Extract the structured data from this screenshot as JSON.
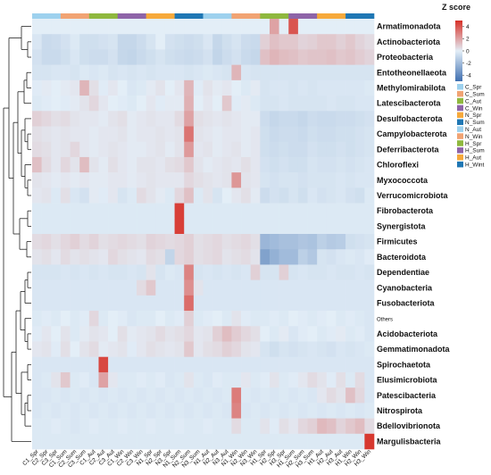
{
  "chart_data": {
    "type": "heatmap",
    "title": "",
    "legend_title": "Z score",
    "legend_ticks": [
      4,
      2,
      0,
      -2,
      -4
    ],
    "zlim": [
      -5,
      5
    ],
    "colors": {
      "low": "#3f6fb0",
      "mid": "#e3eef7",
      "high": "#d73027"
    },
    "columns": [
      "C1_Spr",
      "C2_Spr",
      "C3_Spr",
      "C1_Sum",
      "C2_Sum",
      "C3_Sum",
      "C1_Aut",
      "C2_Aut",
      "C3_Aut",
      "C1_Win",
      "C2_Win",
      "C3_Win",
      "N1_Spr",
      "N2_Spr",
      "N3_Spr",
      "N1_Sum",
      "N2_Sum",
      "N3_Sum",
      "N1_Aut",
      "N2_Aut",
      "N3_Aut",
      "N1_Win",
      "N2_Win",
      "N3_Win",
      "H1_Spr",
      "H2_Spr",
      "H3_Spr",
      "H1_Sum",
      "H2_Sum",
      "H3_Sum",
      "H1_Aut",
      "H2_Aut",
      "H3_Aut",
      "H1_Win",
      "H2_Win",
      "H3_Win"
    ],
    "column_groups": [
      {
        "name": "C_Spr",
        "color": "#9dd1ee",
        "span": 3
      },
      {
        "name": "C_Sum",
        "color": "#f1a373",
        "span": 3
      },
      {
        "name": "C_Aut",
        "color": "#8fb83e",
        "span": 3
      },
      {
        "name": "C_Win",
        "color": "#8e64a8",
        "span": 3
      },
      {
        "name": "N_Spr",
        "color": "#f6a93b",
        "span": 3
      },
      {
        "name": "N_Sum",
        "color": "#1f77b4",
        "span": 3
      },
      {
        "name": "N_Aut",
        "color": "#9dd1ee",
        "span": 3
      },
      {
        "name": "N_Win",
        "color": "#f1a373",
        "span": 3
      },
      {
        "name": "H_Spr",
        "color": "#8fb83e",
        "span": 3
      },
      {
        "name": "H_Sum",
        "color": "#8e64a8",
        "span": 3
      },
      {
        "name": "H_Aut",
        "color": "#f6a93b",
        "span": 3
      },
      {
        "name": "H_Wint",
        "color": "#1f77b4",
        "span": 3
      }
    ],
    "rows": [
      "Armatimonadota",
      "Actinobacteriota",
      "Proteobacteria",
      "Entotheonellaeota",
      "Methylomirabilota",
      "Latescibacterota",
      "Desulfobacterota",
      "Campylobacterota",
      "Deferribacterota",
      "Chloroflexi",
      "Myxococcota",
      "Verrucomicrobiota",
      "Fibrobacterota",
      "Synergistota",
      "Firmicutes",
      "Bacteroidota",
      "Dependentiae",
      "Cyanobacteria",
      "Fusobacteriota",
      "Others",
      "Acidobacteriota",
      "Gemmatimonadota",
      "Spirochaetota",
      "Elusimicrobiota",
      "Patescibacteria",
      "Nitrospirota",
      "Bdellovibrionota",
      "Margulisbacteria"
    ],
    "values": [
      [
        0,
        0,
        0,
        0,
        0,
        0,
        0,
        0,
        0,
        0,
        0,
        0,
        0,
        0,
        0,
        0,
        0,
        0,
        0,
        0,
        0,
        0,
        0,
        0,
        0,
        2,
        0,
        4,
        0,
        0,
        0,
        0,
        0,
        0,
        0,
        0
      ],
      [
        -0.3,
        -0.8,
        -0.7,
        -0.5,
        -0.2,
        -0.6,
        -0.6,
        -0.5,
        -0.4,
        -0.9,
        -0.9,
        -0.7,
        -0.4,
        0,
        -0.5,
        -0.6,
        -0.7,
        -0.6,
        -0.3,
        -0.9,
        -0.6,
        -0.4,
        -0.7,
        -0.8,
        0.8,
        1.2,
        1.0,
        1.0,
        0.7,
        0.8,
        1.0,
        1.0,
        0.8,
        1.0,
        0.7,
        0.5
      ],
      [
        -0.5,
        -0.8,
        -0.8,
        -0.6,
        -0.3,
        -0.6,
        -0.7,
        -0.7,
        -0.5,
        -0.9,
        -1.0,
        -0.8,
        -0.6,
        -0.4,
        -0.6,
        -0.7,
        -0.8,
        -0.7,
        -0.5,
        -1.0,
        -0.7,
        -0.5,
        -0.8,
        -0.9,
        1.2,
        1.5,
        1.3,
        1.2,
        1.0,
        1.1,
        1.1,
        1.2,
        1.0,
        1.1,
        0.9,
        0.7
      ],
      [
        -0.4,
        -0.4,
        -0.3,
        -0.3,
        -0.4,
        -0.2,
        -0.3,
        -0.2,
        -0.4,
        -0.3,
        -0.4,
        -0.3,
        -0.4,
        -0.3,
        -0.3,
        -0.3,
        -0.4,
        -0.3,
        -0.2,
        -0.3,
        -0.4,
        1.5,
        -0.3,
        -0.4,
        -0.4,
        -0.4,
        -0.4,
        -0.4,
        -0.4,
        -0.4,
        -0.4,
        -0.4,
        -0.4,
        -0.4,
        -0.4,
        -0.4
      ],
      [
        -0.1,
        0.1,
        0,
        0.1,
        0.2,
        1.5,
        0.4,
        -0.1,
        0.2,
        0,
        -0.3,
        -0.2,
        0.1,
        0.3,
        0,
        0.2,
        1.5,
        -0.1,
        0.3,
        0.1,
        0.2,
        0,
        -0.2,
        0.1,
        -0.4,
        -0.3,
        -0.3,
        -0.4,
        -0.3,
        -0.4,
        -0.3,
        -0.3,
        -0.3,
        -0.3,
        -0.3,
        -0.2
      ],
      [
        -0.2,
        -0.1,
        0,
        -0.1,
        0.1,
        0.3,
        0.6,
        0.2,
        0,
        -0.1,
        -0.2,
        0,
        0.2,
        -0.1,
        0.1,
        0.1,
        1.6,
        0,
        0.2,
        0,
        1.0,
        -0.1,
        0.1,
        -0.2,
        -0.4,
        -0.4,
        -0.3,
        -0.4,
        -0.4,
        -0.4,
        -0.4,
        -0.3,
        -0.4,
        -0.4,
        -0.3,
        -0.3
      ],
      [
        0.8,
        0.6,
        0.4,
        0.5,
        0.3,
        0.2,
        0.2,
        0.1,
        0.3,
        0.4,
        0.1,
        0.2,
        0.3,
        0.2,
        0.2,
        0.5,
        2.0,
        0.4,
        0.3,
        0.2,
        0.3,
        0.2,
        0.1,
        0.1,
        -0.7,
        -0.9,
        -0.8,
        -0.8,
        -0.9,
        -0.7,
        -0.8,
        -0.8,
        -0.7,
        -0.7,
        -0.6,
        -0.5
      ],
      [
        0.4,
        0.3,
        0.2,
        0.3,
        0.2,
        0.2,
        0.1,
        0.2,
        0.2,
        0.3,
        0.1,
        0.2,
        0.2,
        0.3,
        0.2,
        0.3,
        3.2,
        0.3,
        0.2,
        0.1,
        0.2,
        0.2,
        0.1,
        0.2,
        -0.6,
        -0.8,
        -0.7,
        -0.7,
        -0.8,
        -0.6,
        -0.7,
        -0.7,
        -0.6,
        -0.6,
        -0.5,
        -0.4
      ],
      [
        0.5,
        0.4,
        0.2,
        0.3,
        0.6,
        0.2,
        0.1,
        0.2,
        0.3,
        0.2,
        0.1,
        0.1,
        0.2,
        0.3,
        0.1,
        0.3,
        2.2,
        0.2,
        0.3,
        0.1,
        0.2,
        0.3,
        0.1,
        0.2,
        -0.6,
        -0.7,
        -0.6,
        -0.7,
        -0.7,
        -0.5,
        -0.6,
        -0.6,
        -0.5,
        -0.6,
        -0.5,
        -0.4
      ],
      [
        1.2,
        0.5,
        0.2,
        0.6,
        0.3,
        1.3,
        0.3,
        0.1,
        0.4,
        0.2,
        0.1,
        0.3,
        0.3,
        0.2,
        0.4,
        0.5,
        1.0,
        0.3,
        0.1,
        0.2,
        0.3,
        0.2,
        0.4,
        0.2,
        -0.5,
        -0.6,
        -0.5,
        -0.6,
        -0.6,
        -0.4,
        -0.5,
        -0.5,
        -0.4,
        -0.5,
        -0.4,
        -0.3
      ],
      [
        0.3,
        0.2,
        0.1,
        0.2,
        0.1,
        0.2,
        0.1,
        0.1,
        0.2,
        0.2,
        0.1,
        0.2,
        0.3,
        0.2,
        0.2,
        0.2,
        0.6,
        0.4,
        0.3,
        0.2,
        0.3,
        2.3,
        0.3,
        0.2,
        -0.4,
        -0.5,
        -0.4,
        -0.4,
        -0.5,
        -0.4,
        -0.4,
        -0.4,
        -0.3,
        -0.4,
        -0.3,
        -0.3
      ],
      [
        0.2,
        0.3,
        -0.2,
        0.4,
        -0.3,
        -0.5,
        0.1,
        -0.1,
        0.2,
        -0.4,
        -0.2,
        0.5,
        0.3,
        0.1,
        -0.2,
        0.6,
        1.2,
        -0.2,
        0.3,
        -0.4,
        0,
        0.2,
        0.4,
        0.1,
        -0.7,
        -0.5,
        -0.6,
        -0.4,
        -0.6,
        -0.3,
        -0.5,
        -0.4,
        -0.3,
        -0.5,
        -0.6,
        -0.2
      ],
      [
        -0.2,
        -0.2,
        -0.2,
        -0.2,
        -0.2,
        -0.2,
        -0.2,
        -0.2,
        -0.2,
        -0.2,
        -0.2,
        -0.2,
        -0.2,
        -0.2,
        -0.2,
        4.6,
        -0.2,
        -0.2,
        -0.2,
        -0.2,
        -0.2,
        -0.2,
        -0.2,
        -0.2,
        -0.2,
        -0.2,
        -0.2,
        -0.2,
        -0.2,
        -0.2,
        -0.2,
        -0.2,
        -0.2,
        -0.2,
        -0.2,
        -0.2
      ],
      [
        -0.2,
        -0.2,
        -0.2,
        -0.2,
        -0.2,
        -0.2,
        -0.2,
        -0.2,
        -0.2,
        -0.2,
        -0.2,
        -0.2,
        -0.2,
        -0.2,
        -0.2,
        4.6,
        -0.2,
        -0.2,
        -0.2,
        -0.2,
        -0.2,
        -0.2,
        -0.2,
        -0.2,
        -0.2,
        -0.2,
        -0.2,
        -0.2,
        -0.2,
        -0.2,
        -0.2,
        -0.2,
        -0.2,
        -0.2,
        -0.2,
        -0.2
      ],
      [
        0.5,
        0.6,
        0.4,
        0.6,
        0.8,
        0.5,
        0.7,
        0.4,
        0.5,
        0.6,
        0.5,
        0.4,
        0.7,
        0.6,
        0.5,
        0.6,
        0.8,
        0.4,
        0.5,
        0.6,
        0.4,
        0.5,
        0.6,
        0.4,
        -2.2,
        -2.0,
        -1.8,
        -1.8,
        -1.6,
        -1.7,
        -1.2,
        -1.4,
        -1.3,
        -0.6,
        -0.5,
        -0.4
      ],
      [
        0.3,
        0.4,
        0.2,
        0.5,
        0.3,
        0.4,
        0.3,
        0.2,
        0.6,
        0.4,
        0.3,
        0.2,
        0.5,
        0.4,
        -1.0,
        0.6,
        0.8,
        0.4,
        0.5,
        0.6,
        0.3,
        0.4,
        0.5,
        0.3,
        -3.0,
        -2.4,
        -2.0,
        -2.0,
        -1.2,
        -1.5,
        -0.4,
        -0.5,
        -0.3,
        -0.2,
        -0.3,
        -0.1
      ],
      [
        -0.4,
        -0.4,
        -0.4,
        -0.3,
        -0.4,
        -0.3,
        -0.4,
        -0.3,
        -0.4,
        -0.4,
        -0.3,
        -0.4,
        0.3,
        -0.4,
        -0.2,
        -0.3,
        2.8,
        -0.4,
        -0.3,
        -0.4,
        -0.3,
        -0.4,
        -0.3,
        0.8,
        -0.4,
        -0.4,
        0.8,
        -0.4,
        -0.3,
        -0.4,
        -0.4,
        -0.3,
        -0.4,
        -0.4,
        -0.3,
        -0.4
      ],
      [
        -0.3,
        -0.3,
        -0.3,
        -0.3,
        -0.3,
        -0.3,
        -0.3,
        -0.3,
        -0.3,
        -0.3,
        -0.3,
        0.5,
        1.0,
        -0.3,
        -0.3,
        -0.3,
        2.5,
        0.3,
        -0.3,
        -0.3,
        -0.3,
        -0.3,
        -0.3,
        -0.3,
        -0.3,
        -0.3,
        -0.3,
        -0.3,
        -0.3,
        -0.3,
        -0.3,
        -0.3,
        -0.3,
        -0.3,
        -0.3,
        -0.3
      ],
      [
        -0.3,
        -0.3,
        -0.3,
        -0.3,
        -0.3,
        -0.3,
        -0.3,
        -0.3,
        -0.3,
        -0.3,
        -0.3,
        -0.3,
        -0.3,
        -0.3,
        -0.3,
        -0.3,
        3.4,
        -0.3,
        -0.3,
        -0.3,
        -0.3,
        -0.3,
        -0.3,
        -0.3,
        -0.3,
        -0.3,
        -0.3,
        -0.3,
        -0.3,
        -0.3,
        -0.3,
        -0.3,
        -0.3,
        -0.3,
        -0.3,
        -0.3
      ],
      [
        -0.2,
        -0.1,
        -0.2,
        0,
        -0.2,
        -0.1,
        0.6,
        -0.2,
        0,
        -0.1,
        -0.3,
        -0.2,
        -0.2,
        0,
        -0.2,
        -0.1,
        0.8,
        -0.2,
        -0.1,
        0,
        -0.2,
        0.3,
        -0.1,
        -0.2,
        -0.2,
        -0.1,
        -0.2,
        0,
        -0.1,
        -0.2,
        -0.1,
        0,
        -0.2,
        -0.1,
        -0.2,
        -0.3
      ],
      [
        -0.1,
        0.2,
        0,
        0.3,
        -0.2,
        0.1,
        0.3,
        0.2,
        0,
        0.4,
        0.1,
        0.2,
        0.3,
        0.5,
        0.3,
        0.4,
        0.6,
        0.2,
        0.3,
        0.8,
        1.3,
        0.9,
        0.6,
        0.4,
        0,
        -0.2,
        0.1,
        -0.3,
        -0.1,
        0,
        -0.2,
        -0.1,
        0.1,
        -0.2,
        -0.1,
        -0.3
      ],
      [
        0.2,
        0.3,
        -0.1,
        0.4,
        0,
        0.3,
        0.5,
        0.1,
        0.2,
        0.3,
        -0.1,
        0.2,
        0.4,
        0.3,
        0.2,
        0.3,
        1.0,
        0.2,
        0.4,
        0.5,
        0.8,
        0.6,
        0.3,
        0.2,
        -0.4,
        -0.6,
        -0.4,
        -0.5,
        -0.4,
        -0.3,
        -0.4,
        -0.5,
        -0.3,
        -0.4,
        -0.3,
        -0.2
      ],
      [
        -0.3,
        -0.3,
        -0.3,
        -0.3,
        -0.3,
        -0.3,
        -0.3,
        4.4,
        -0.3,
        -0.3,
        -0.3,
        -0.3,
        -0.3,
        -0.3,
        -0.3,
        -0.3,
        -0.3,
        -0.3,
        -0.3,
        -0.3,
        -0.3,
        -0.3,
        -0.3,
        -0.3,
        -0.3,
        -0.3,
        -0.3,
        -0.3,
        -0.3,
        -0.3,
        -0.3,
        -0.3,
        -0.3,
        -0.3,
        -0.3,
        -0.3
      ],
      [
        -0.3,
        -0.2,
        0.3,
        1.0,
        -0.2,
        -0.1,
        -0.3,
        2.0,
        0.2,
        -0.2,
        -0.2,
        -0.1,
        -0.2,
        -0.1,
        -0.3,
        -0.2,
        0.3,
        -0.2,
        -0.3,
        -0.1,
        -0.2,
        -0.2,
        0.2,
        -0.2,
        -0.1,
        0.3,
        -0.2,
        -0.1,
        0.2,
        0.5,
        0.3,
        -0.1,
        0.4,
        -0.2,
        0.5,
        -0.3
      ],
      [
        -0.3,
        -0.3,
        -0.2,
        -0.3,
        -0.2,
        -0.3,
        -0.2,
        -0.3,
        -0.2,
        -0.3,
        -0.2,
        -0.3,
        -0.2,
        -0.3,
        -0.2,
        -0.3,
        -0.2,
        -0.3,
        -0.2,
        -0.3,
        -0.2,
        3.0,
        -0.2,
        -0.3,
        -0.2,
        -0.3,
        -0.2,
        -0.3,
        -0.2,
        -0.3,
        0.2,
        0.5,
        0.3,
        1.2,
        0.6,
        -0.3
      ],
      [
        -0.3,
        -0.2,
        -0.3,
        -0.2,
        -0.3,
        -0.2,
        -0.3,
        -0.2,
        -0.3,
        -0.2,
        -0.3,
        -0.2,
        -0.3,
        -0.2,
        -0.3,
        -0.2,
        -0.3,
        -0.2,
        -0.3,
        -0.2,
        -0.3,
        2.8,
        -0.3,
        -0.2,
        -0.3,
        -0.2,
        -0.3,
        -0.2,
        -0.3,
        -0.2,
        -0.3,
        -0.2,
        -0.3,
        -0.2,
        -0.3,
        -0.2
      ],
      [
        -0.2,
        -0.2,
        -0.1,
        -0.2,
        -0.3,
        -0.2,
        -0.1,
        -0.2,
        -0.2,
        -0.1,
        -0.2,
        -0.2,
        -0.1,
        -0.2,
        -0.2,
        -0.1,
        -0.2,
        -0.2,
        -0.1,
        -0.2,
        -0.2,
        0.5,
        -0.2,
        -0.2,
        0.3,
        -0.1,
        0.4,
        0.2,
        0.6,
        0.8,
        1.4,
        1.2,
        0.7,
        1.0,
        1.3,
        0.5
      ],
      [
        -0.2,
        -0.2,
        -0.2,
        -0.2,
        -0.2,
        -0.2,
        -0.2,
        -0.2,
        -0.2,
        -0.2,
        -0.2,
        -0.2,
        -0.2,
        -0.2,
        -0.2,
        -0.2,
        -0.2,
        -0.2,
        -0.2,
        -0.2,
        -0.2,
        -0.2,
        -0.2,
        -0.2,
        -0.2,
        -0.2,
        -0.2,
        -0.2,
        -0.2,
        -0.2,
        -0.2,
        -0.2,
        -0.2,
        -0.2,
        -0.2,
        4.8
      ]
    ]
  }
}
